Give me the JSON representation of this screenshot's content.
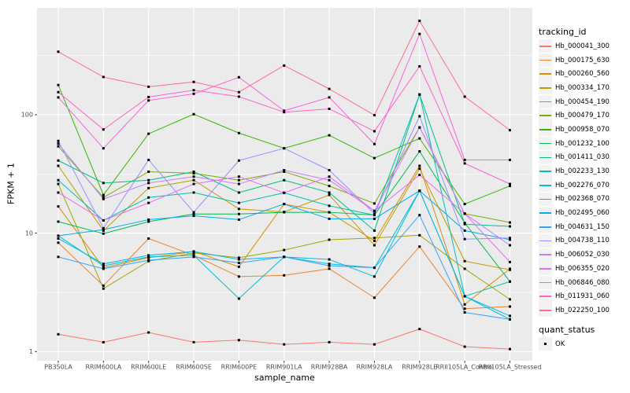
{
  "chart": {
    "x_axis_title": "sample_name",
    "y_axis_title": "FPKM + 1",
    "y_tick_labels": [
      "1",
      "10",
      "100"
    ],
    "panel_bg": "#EBEBEB",
    "gridline_color": "#FFFFFF",
    "tick_text_color": "#4D4D4D",
    "marker_color": "#000000"
  },
  "legend": {
    "tracking_title": "tracking_id",
    "quant_title": "quant_status",
    "quant_value": "OK"
  },
  "chart_data": {
    "type": "line",
    "x_label": "sample_name",
    "y_label": "FPKM + 1",
    "y_scale": "log10",
    "y_ticks": [
      1,
      10,
      100
    ],
    "y_minor_ticks": [
      3.162,
      31.62,
      316.2
    ],
    "ylim": [
      0.83,
      790
    ],
    "grid": true,
    "legend_position": "right",
    "marker": "filled-square",
    "categories": [
      "PB350LA",
      "RRIM600LA",
      "RRIM600LE",
      "RRIM600SE",
      "RRIM600PE",
      "RRIM901LA",
      "RRIM928BA",
      "RRIM928LA",
      "RRIM928LE",
      "RRII105LA_Control",
      "RRII105LA_Stressed"
    ],
    "series": [
      {
        "name": "Hb_000041_300",
        "color": "#F8766D",
        "values": [
          1.4,
          1.2,
          1.45,
          1.2,
          1.25,
          1.15,
          1.2,
          1.15,
          1.55,
          1.1,
          1.05
        ]
      },
      {
        "name": "Hb_000175_630",
        "color": "#EA8331",
        "values": [
          8.3,
          3.6,
          9.0,
          6.5,
          4.3,
          4.4,
          5.0,
          2.85,
          7.7,
          2.3,
          2.4
        ]
      },
      {
        "name": "Hb_000260_560",
        "color": "#D89000",
        "values": [
          16.8,
          5.1,
          6.2,
          7.0,
          5.2,
          17.6,
          15.0,
          8.6,
          37,
          2.5,
          5.0
        ]
      },
      {
        "name": "Hb_000334_170",
        "color": "#C09B00",
        "values": [
          37,
          10.5,
          24,
          28,
          16,
          15.1,
          21,
          7.9,
          35,
          5.8,
          4.9
        ]
      },
      {
        "name": "Hb_000454_190",
        "color": "#A3A500",
        "values": [
          26,
          3.4,
          5.8,
          6.8,
          6.2,
          7.2,
          8.8,
          9.1,
          9.6,
          5.0,
          2.76
        ]
      },
      {
        "name": "Hb_000479_170",
        "color": "#7CAE00",
        "values": [
          54,
          20,
          33,
          32,
          28,
          33,
          25,
          17.8,
          78,
          14.6,
          12.3
        ]
      },
      {
        "name": "Hb_000958_070",
        "color": "#39B600",
        "values": [
          178,
          21,
          69,
          101,
          70,
          52,
          67,
          43,
          63,
          17.6,
          25
        ]
      },
      {
        "name": "Hb_001232_100",
        "color": "#00BB4E",
        "values": [
          12.5,
          9.9,
          12.5,
          14.5,
          14.5,
          15,
          15,
          14.2,
          49,
          12.2,
          3.9
        ]
      },
      {
        "name": "Hb_001411_030",
        "color": "#00C087",
        "values": [
          41,
          26.5,
          28,
          33,
          22,
          28,
          22,
          10.5,
          148,
          11.9,
          11.4
        ]
      },
      {
        "name": "Hb_002233_130",
        "color": "#00C0B2",
        "values": [
          28,
          12.8,
          20,
          22,
          18,
          21.9,
          17,
          14.2,
          148,
          2.93,
          3.9
        ]
      },
      {
        "name": "Hb_002276_070",
        "color": "#00BFD3",
        "values": [
          9.5,
          5.3,
          6.3,
          6.5,
          2.8,
          6.3,
          6.0,
          4.3,
          22.8,
          2.93,
          2.0
        ]
      },
      {
        "name": "Hb_002368_070",
        "color": "#00B8E7",
        "values": [
          9.0,
          5.5,
          6.5,
          7.0,
          6.0,
          6.3,
          5.5,
          5.1,
          22.8,
          2.93,
          1.87
        ]
      },
      {
        "name": "Hb_002495_060",
        "color": "#00ACF4",
        "values": [
          9.5,
          10.7,
          13,
          14,
          13,
          17.6,
          13.2,
          13.2,
          22.8,
          10.5,
          8.8
        ]
      },
      {
        "name": "Hb_004631_150",
        "color": "#35A2FF",
        "values": [
          6.3,
          5.0,
          5.9,
          6.3,
          5.6,
          6.3,
          5.3,
          5.1,
          14.2,
          2.14,
          1.87
        ]
      },
      {
        "name": "Hb_004738_110",
        "color": "#9590FF",
        "values": [
          60,
          11,
          41.5,
          15,
          41,
          52,
          34,
          14.6,
          97,
          8.9,
          9.1
        ]
      },
      {
        "name": "Hb_006052_030",
        "color": "#C77CFF",
        "values": [
          57,
          19.4,
          26.5,
          30,
          26,
          34,
          28,
          15.4,
          78,
          14.6,
          7.9
        ]
      },
      {
        "name": "Hb_006355_020",
        "color": "#E76BF3",
        "values": [
          22,
          12.8,
          18,
          26,
          30,
          21.9,
          30,
          15.4,
          31,
          14.6,
          5.7
        ]
      },
      {
        "name": "Hb_006846_080",
        "color": "#FA62DB",
        "values": [
          140,
          52,
          132,
          150,
          207,
          108,
          140,
          56.5,
          480,
          41.5,
          41.5
        ]
      },
      {
        "name": "Hb_011931_060",
        "color": "#FF61C9",
        "values": [
          155,
          75,
          141,
          161,
          142,
          105,
          112,
          72.5,
          256,
          38.8,
          26
        ]
      },
      {
        "name": "Hb_022250_100",
        "color": "#FF6A98",
        "values": [
          340,
          208,
          172,
          189,
          155,
          260,
          165,
          99,
          620,
          142,
          74
        ]
      }
    ],
    "quant_status_series": "OK"
  }
}
